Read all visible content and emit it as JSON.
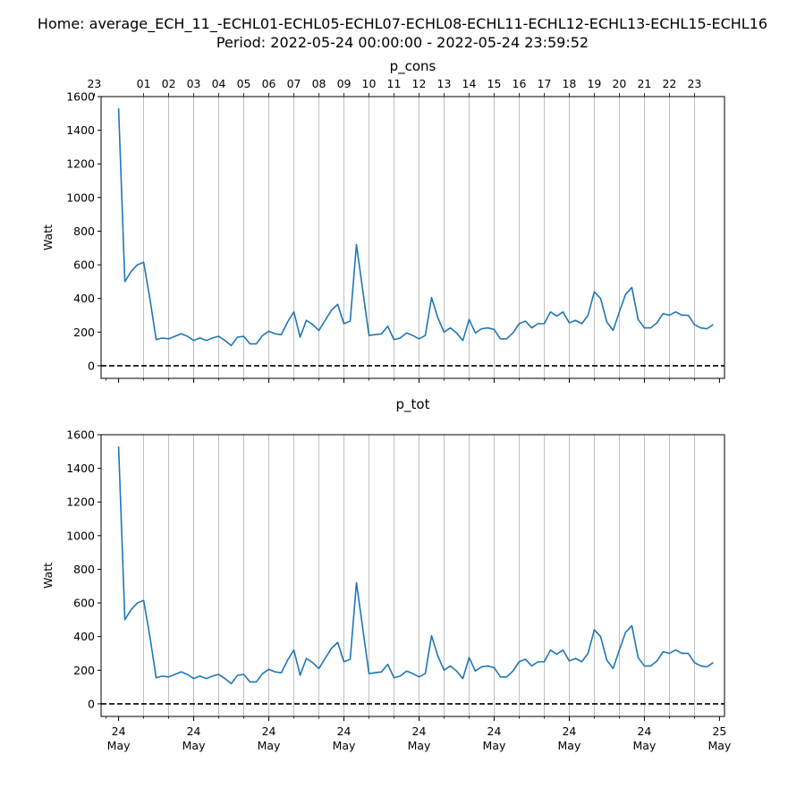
{
  "figure": {
    "title_line1": "Home: average_ECH_11_-ECHL01-ECHL05-ECHL07-ECHL08-ECHL11-ECHL12-ECHL13-ECHL15-ECHL16",
    "title_line2": "Period: 2022-05-24 00:00:00 - 2022-05-24 23:59:52"
  },
  "chart_data": [
    {
      "type": "line",
      "title": "p_cons",
      "ylabel": "Watt",
      "xlim": [
        -0.7,
        24.2
      ],
      "ylim": [
        -75,
        1600
      ],
      "yticks": [
        0,
        200,
        400,
        600,
        800,
        1000,
        1200,
        1400,
        1600
      ],
      "top_axis_hour_labels": [
        "23",
        "01",
        "02",
        "03",
        "04",
        "05",
        "06",
        "07",
        "08",
        "09",
        "10",
        "11",
        "12",
        "13",
        "14",
        "15",
        "16",
        "17",
        "18",
        "19",
        "20",
        "21",
        "22",
        "23"
      ],
      "hour_gridlines": [
        1,
        2,
        3,
        4,
        5,
        6,
        7,
        8,
        9,
        10,
        11,
        12,
        13,
        14,
        15,
        16,
        17,
        18,
        19,
        20,
        21,
        22,
        23
      ],
      "zero_line": {
        "y": 0,
        "style": "dashed",
        "color": "#000000"
      },
      "series": [
        {
          "color": "#1f77b4",
          "x": [
            0,
            0.25,
            0.5,
            0.75,
            1,
            1.25,
            1.5,
            1.75,
            2,
            2.25,
            2.5,
            2.75,
            3,
            3.25,
            3.5,
            3.75,
            4,
            4.25,
            4.5,
            4.75,
            5,
            5.25,
            5.5,
            5.75,
            6,
            6.25,
            6.5,
            6.75,
            7,
            7.25,
            7.5,
            7.75,
            8,
            8.25,
            8.5,
            8.75,
            9,
            9.25,
            9.5,
            9.75,
            10,
            10.25,
            10.5,
            10.75,
            11,
            11.25,
            11.5,
            11.75,
            12,
            12.25,
            12.5,
            12.75,
            13,
            13.25,
            13.5,
            13.75,
            14,
            14.25,
            14.5,
            14.75,
            15,
            15.25,
            15.5,
            15.75,
            16,
            16.25,
            16.5,
            16.75,
            17,
            17.25,
            17.5,
            17.75,
            18,
            18.25,
            18.5,
            18.75,
            19,
            19.25,
            19.5,
            19.75,
            20,
            20.25,
            20.5,
            20.75,
            21,
            21.25,
            21.5,
            21.75,
            22,
            22.25,
            22.5,
            22.75,
            23,
            23.25,
            23.5,
            23.75
          ],
          "values": [
            1530,
            500,
            560,
            600,
            615,
            400,
            155,
            165,
            160,
            175,
            190,
            175,
            150,
            165,
            150,
            165,
            175,
            150,
            120,
            170,
            175,
            130,
            130,
            180,
            205,
            190,
            185,
            260,
            320,
            170,
            270,
            245,
            210,
            270,
            330,
            365,
            250,
            265,
            720,
            450,
            180,
            185,
            190,
            235,
            155,
            165,
            195,
            180,
            160,
            180,
            405,
            285,
            200,
            225,
            195,
            150,
            275,
            195,
            220,
            225,
            215,
            160,
            160,
            195,
            250,
            265,
            225,
            250,
            250,
            320,
            295,
            320,
            255,
            270,
            250,
            300,
            440,
            400,
            260,
            210,
            320,
            425,
            465,
            275,
            225,
            225,
            255,
            310,
            300,
            320,
            300,
            300,
            245,
            225,
            220,
            245
          ]
        }
      ]
    },
    {
      "type": "line",
      "title": "p_tot",
      "ylabel": "Watt",
      "xlim": [
        -0.7,
        24.2
      ],
      "ylim": [
        -75,
        1600
      ],
      "yticks": [
        0,
        200,
        400,
        600,
        800,
        1000,
        1200,
        1400,
        1600
      ],
      "bottom_axis_labels": [
        {
          "x": 0,
          "line1": "24",
          "line2": "May"
        },
        {
          "x": 3,
          "line1": "24",
          "line2": "May"
        },
        {
          "x": 6,
          "line1": "24",
          "line2": "May"
        },
        {
          "x": 9,
          "line1": "24",
          "line2": "May"
        },
        {
          "x": 12,
          "line1": "24",
          "line2": "May"
        },
        {
          "x": 15,
          "line1": "24",
          "line2": "May"
        },
        {
          "x": 18,
          "line1": "24",
          "line2": "May"
        },
        {
          "x": 21,
          "line1": "24",
          "line2": "May"
        },
        {
          "x": 24,
          "line1": "25",
          "line2": "May"
        }
      ],
      "hour_gridlines": [
        1,
        2,
        3,
        4,
        5,
        6,
        7,
        8,
        9,
        10,
        11,
        12,
        13,
        14,
        15,
        16,
        17,
        18,
        19,
        20,
        21,
        22,
        23
      ],
      "zero_line": {
        "y": 0,
        "style": "dashed",
        "color": "#000000"
      },
      "series": [
        {
          "color": "#1f77b4",
          "x": [
            0,
            0.25,
            0.5,
            0.75,
            1,
            1.25,
            1.5,
            1.75,
            2,
            2.25,
            2.5,
            2.75,
            3,
            3.25,
            3.5,
            3.75,
            4,
            4.25,
            4.5,
            4.75,
            5,
            5.25,
            5.5,
            5.75,
            6,
            6.25,
            6.5,
            6.75,
            7,
            7.25,
            7.5,
            7.75,
            8,
            8.25,
            8.5,
            8.75,
            9,
            9.25,
            9.5,
            9.75,
            10,
            10.25,
            10.5,
            10.75,
            11,
            11.25,
            11.5,
            11.75,
            12,
            12.25,
            12.5,
            12.75,
            13,
            13.25,
            13.5,
            13.75,
            14,
            14.25,
            14.5,
            14.75,
            15,
            15.25,
            15.5,
            15.75,
            16,
            16.25,
            16.5,
            16.75,
            17,
            17.25,
            17.5,
            17.75,
            18,
            18.25,
            18.5,
            18.75,
            19,
            19.25,
            19.5,
            19.75,
            20,
            20.25,
            20.5,
            20.75,
            21,
            21.25,
            21.5,
            21.75,
            22,
            22.25,
            22.5,
            22.75,
            23,
            23.25,
            23.5,
            23.75
          ],
          "values": [
            1530,
            500,
            560,
            600,
            615,
            400,
            155,
            165,
            160,
            175,
            190,
            175,
            150,
            165,
            150,
            165,
            175,
            150,
            120,
            170,
            175,
            130,
            130,
            180,
            205,
            190,
            185,
            260,
            320,
            170,
            270,
            245,
            210,
            270,
            330,
            365,
            250,
            265,
            720,
            450,
            180,
            185,
            190,
            235,
            155,
            165,
            195,
            180,
            160,
            180,
            405,
            285,
            200,
            225,
            195,
            150,
            275,
            195,
            220,
            225,
            215,
            160,
            160,
            195,
            250,
            265,
            225,
            250,
            250,
            320,
            295,
            320,
            255,
            270,
            250,
            300,
            440,
            400,
            260,
            210,
            320,
            425,
            465,
            275,
            225,
            225,
            255,
            310,
            300,
            320,
            300,
            300,
            245,
            225,
            220,
            245
          ]
        }
      ]
    }
  ]
}
